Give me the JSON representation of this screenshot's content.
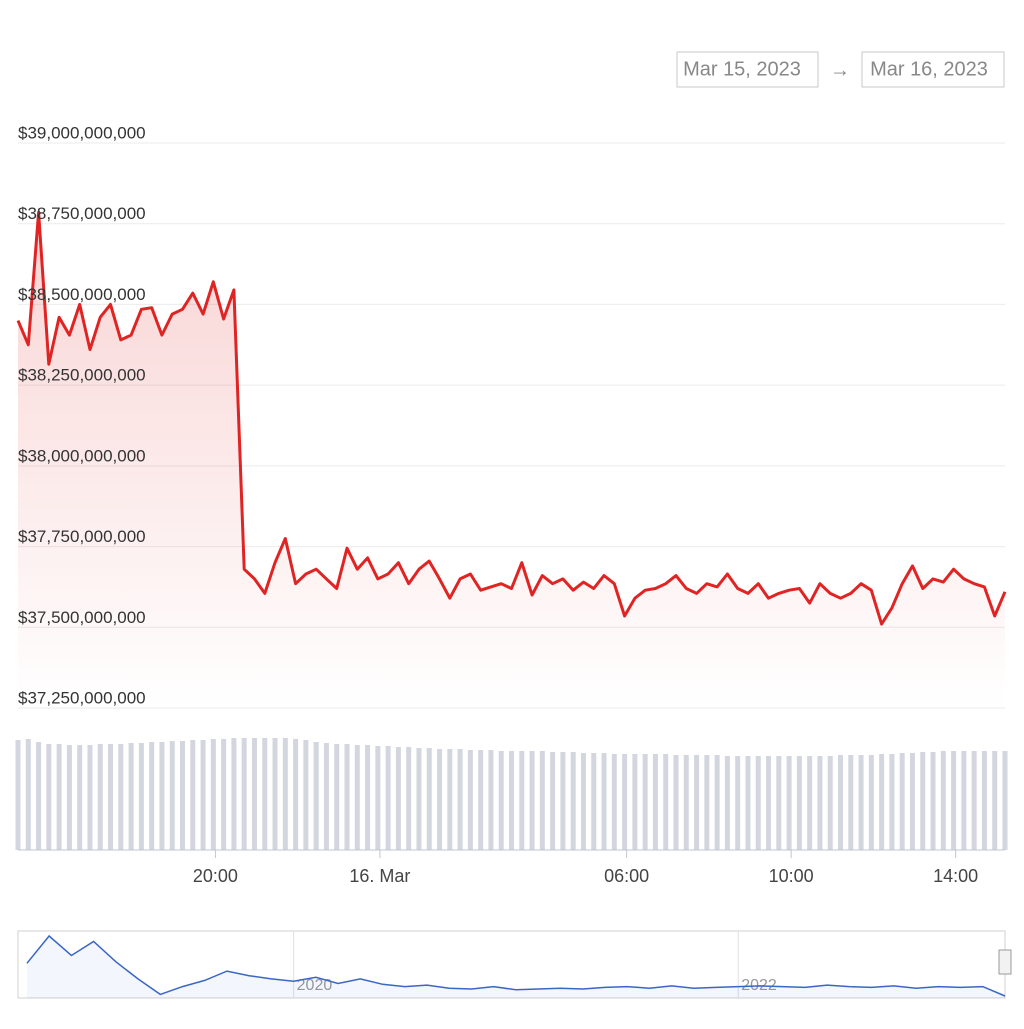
{
  "chart_data": {
    "type": "area",
    "range_from": "Mar 15, 2023",
    "range_separator": "→",
    "range_to": "Mar 16, 2023",
    "grid": true,
    "color": "#e02424",
    "xlim": [
      15.2,
      39.2
    ],
    "xticks": [
      {
        "value": 20,
        "label": "20:00"
      },
      {
        "value": 24,
        "label": "16. Mar"
      },
      {
        "value": 30,
        "label": "06:00"
      },
      {
        "value": 34,
        "label": "10:00"
      },
      {
        "value": 38,
        "label": "14:00"
      }
    ],
    "ylim": [
      37250000000,
      39000000000
    ],
    "yticks": [
      {
        "value": 37250000000,
        "label": "$37,250,000,000"
      },
      {
        "value": 37500000000,
        "label": "$37,500,000,000"
      },
      {
        "value": 37750000000,
        "label": "$37,750,000,000"
      },
      {
        "value": 38000000000,
        "label": "$38,000,000,000"
      },
      {
        "value": 38250000000,
        "label": "$38,250,000,000"
      },
      {
        "value": 38500000000,
        "label": "$38,500,000,000"
      },
      {
        "value": 38750000000,
        "label": "$38,750,000,000"
      },
      {
        "value": 39000000000,
        "label": "$39,000,000,000"
      }
    ],
    "x": [
      15.2,
      15.45,
      15.7,
      15.95,
      16.2,
      16.45,
      16.7,
      16.95,
      17.2,
      17.45,
      17.7,
      17.95,
      18.2,
      18.45,
      18.7,
      18.95,
      19.2,
      19.45,
      19.7,
      19.95,
      20.2,
      20.45,
      20.7,
      20.95,
      21.2,
      21.45,
      21.7,
      21.95,
      22.2,
      22.45,
      22.7,
      22.95,
      23.2,
      23.45,
      23.7,
      23.95,
      24.2,
      24.45,
      24.7,
      24.95,
      25.2,
      25.45,
      25.7,
      25.95,
      26.2,
      26.45,
      26.7,
      26.95,
      27.2,
      27.45,
      27.7,
      27.95,
      28.2,
      28.45,
      28.7,
      28.95,
      29.2,
      29.45,
      29.7,
      29.95,
      30.2,
      30.45,
      30.7,
      30.95,
      31.2,
      31.45,
      31.7,
      31.95,
      32.2,
      32.45,
      32.7,
      32.95,
      33.2,
      33.45,
      33.7,
      33.95,
      34.2,
      34.45,
      34.7,
      34.95,
      35.2,
      35.45,
      35.7,
      35.95,
      36.2,
      36.45,
      36.7,
      36.95,
      37.2,
      37.45,
      37.7,
      37.95,
      38.2,
      38.45,
      38.7,
      38.95,
      39.2
    ],
    "values": [
      38450000000,
      38375000000,
      38785000000,
      38315000000,
      38460000000,
      38405000000,
      38500000000,
      38360000000,
      38460000000,
      38500000000,
      38390000000,
      38405000000,
      38485000000,
      38490000000,
      38405000000,
      38470000000,
      38485000000,
      38535000000,
      38470000000,
      38570000000,
      38455000000,
      38545000000,
      37680000000,
      37650000000,
      37605000000,
      37700000000,
      37775000000,
      37635000000,
      37665000000,
      37680000000,
      37650000000,
      37620000000,
      37745000000,
      37680000000,
      37715000000,
      37650000000,
      37665000000,
      37700000000,
      37635000000,
      37680000000,
      37705000000,
      37650000000,
      37590000000,
      37650000000,
      37665000000,
      37615000000,
      37625000000,
      37635000000,
      37620000000,
      37700000000,
      37600000000,
      37660000000,
      37635000000,
      37650000000,
      37615000000,
      37640000000,
      37620000000,
      37660000000,
      37635000000,
      37535000000,
      37590000000,
      37615000000,
      37620000000,
      37635000000,
      37660000000,
      37620000000,
      37605000000,
      37635000000,
      37625000000,
      37665000000,
      37620000000,
      37605000000,
      37635000000,
      37590000000,
      37605000000,
      37615000000,
      37620000000,
      37575000000,
      37635000000,
      37605000000,
      37590000000,
      37605000000,
      37635000000,
      37615000000,
      37510000000,
      37560000000,
      37635000000,
      37690000000,
      37620000000,
      37650000000,
      37640000000,
      37680000000,
      37650000000,
      37635000000,
      37625000000,
      37535000000,
      37610000000
    ],
    "volume": {
      "color": "#d3d6de",
      "values": [
        110,
        111,
        108,
        106,
        106,
        105,
        105,
        105,
        106,
        106,
        106,
        107,
        107,
        108,
        108,
        109,
        109,
        110,
        110,
        111,
        111,
        112,
        112,
        112,
        112,
        112,
        112,
        111,
        110,
        108,
        107,
        106,
        106,
        105,
        105,
        104,
        104,
        103,
        103,
        102,
        102,
        101,
        101,
        101,
        100,
        100,
        100,
        99,
        99,
        99,
        99,
        99,
        98,
        98,
        98,
        97,
        97,
        97,
        96,
        96,
        96,
        96,
        96,
        96,
        95,
        95,
        95,
        95,
        95,
        94,
        94,
        94,
        94,
        94,
        94,
        94,
        94,
        94,
        94,
        94,
        95,
        95,
        95,
        95,
        96,
        96,
        97,
        97,
        98,
        98,
        99,
        99,
        99,
        99,
        99,
        99,
        99
      ]
    },
    "navigator": {
      "color": "#3a66c4",
      "xlim": [
        2018.76,
        2023.2
      ],
      "xticks": [
        2020,
        2022
      ],
      "x": [
        2018.8,
        2018.9,
        2019.0,
        2019.1,
        2019.2,
        2019.3,
        2019.4,
        2019.5,
        2019.6,
        2019.7,
        2019.8,
        2019.9,
        2020.0,
        2020.1,
        2020.2,
        2020.3,
        2020.4,
        2020.5,
        2020.6,
        2020.7,
        2020.8,
        2020.9,
        2021.0,
        2021.1,
        2021.2,
        2021.3,
        2021.4,
        2021.5,
        2021.6,
        2021.7,
        2021.8,
        2021.9,
        2022.0,
        2022.1,
        2022.2,
        2022.3,
        2022.4,
        2022.5,
        2022.6,
        2022.7,
        2022.8,
        2022.9,
        2023.0,
        2023.1,
        2023.2
      ],
      "values": [
        60,
        95,
        70,
        88,
        62,
        40,
        20,
        30,
        38,
        50,
        44,
        40,
        37,
        42,
        34,
        40,
        33,
        30,
        32,
        28,
        27,
        30,
        26,
        27,
        28,
        27,
        29,
        30,
        28,
        31,
        28,
        29,
        30,
        31,
        30,
        29,
        32,
        30,
        29,
        31,
        28,
        30,
        29,
        30,
        18
      ]
    }
  }
}
